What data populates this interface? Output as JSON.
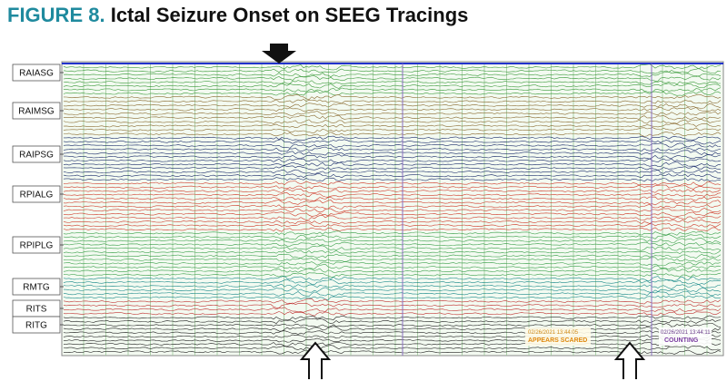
{
  "header": {
    "figure_label": "FIGURE 8.",
    "title": "Ictal Seizure Onset on SEEG Tracings"
  },
  "electrodes": [
    "RAIASG",
    "RAIMSG",
    "RAIPSG",
    "RPIALG",
    "RPIPLG",
    "RMTG",
    "RITS",
    "RITG"
  ],
  "annotations": [
    {
      "timestamp": "02/26/2021 13:44:05",
      "text": "APPEARS SCARED"
    },
    {
      "timestamp": "02/26/2021 13:44:11",
      "text": "COUNTING"
    }
  ]
}
